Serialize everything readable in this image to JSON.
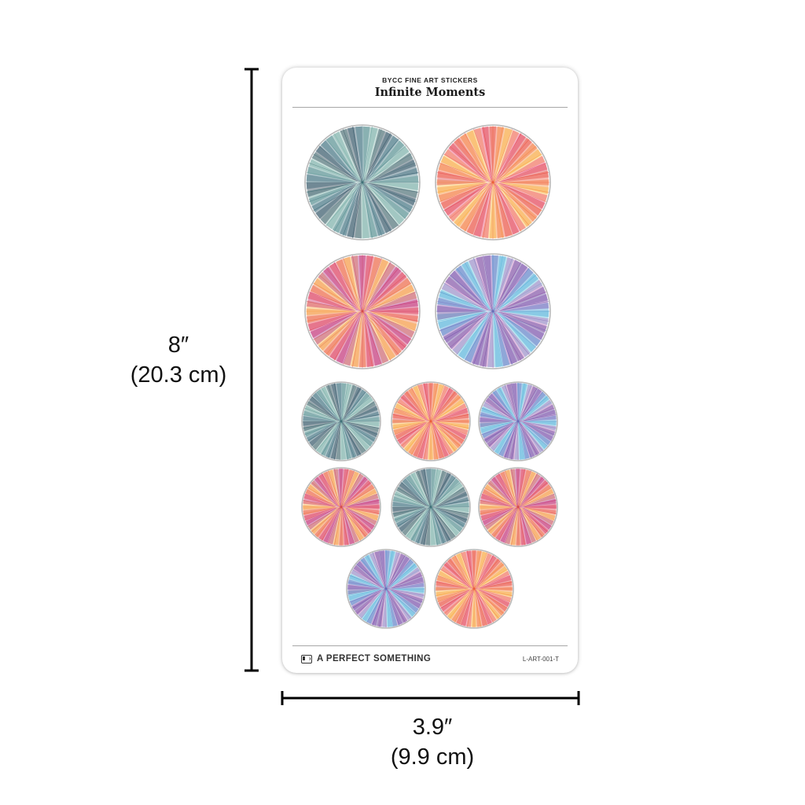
{
  "sheet": {
    "brand": "BYCC FINE ART STICKERS",
    "title": "Infinite Moments",
    "company": "A PERFECT SOMETHING",
    "sku": "L-ART-001-T"
  },
  "dimensions": {
    "height_in": "8″",
    "height_cm": "(20.3 cm)",
    "width_in": "3.9″",
    "width_cm": "(9.9 cm)"
  },
  "stickers": [
    {
      "palette": "teal",
      "size": "large"
    },
    {
      "palette": "warm",
      "size": "large"
    },
    {
      "palette": "magenta",
      "size": "large"
    },
    {
      "palette": "violet",
      "size": "large"
    },
    {
      "palette": "teal",
      "size": "small"
    },
    {
      "palette": "warm",
      "size": "small"
    },
    {
      "palette": "violet",
      "size": "small"
    },
    {
      "palette": "magenta",
      "size": "small"
    },
    {
      "palette": "teal",
      "size": "small"
    },
    {
      "palette": "magenta",
      "size": "small"
    },
    {
      "palette": "violet",
      "size": "small"
    },
    {
      "palette": "warm",
      "size": "small"
    }
  ],
  "palettes": {
    "teal": [
      "#0e2a3c",
      "#1f4d60",
      "#2f6d78",
      "#4a8d8a",
      "#7bb3a8"
    ],
    "warm": [
      "#d9262e",
      "#ef4a2a",
      "#f57c20",
      "#f9b02a",
      "#e8305f"
    ],
    "magenta": [
      "#c4135a",
      "#e22a3a",
      "#f06a24",
      "#f7a12a",
      "#a51d7a"
    ],
    "violet": [
      "#4a2a8f",
      "#7a3fa8",
      "#2e8fd0",
      "#4dbad8",
      "#b45ab0"
    ]
  }
}
